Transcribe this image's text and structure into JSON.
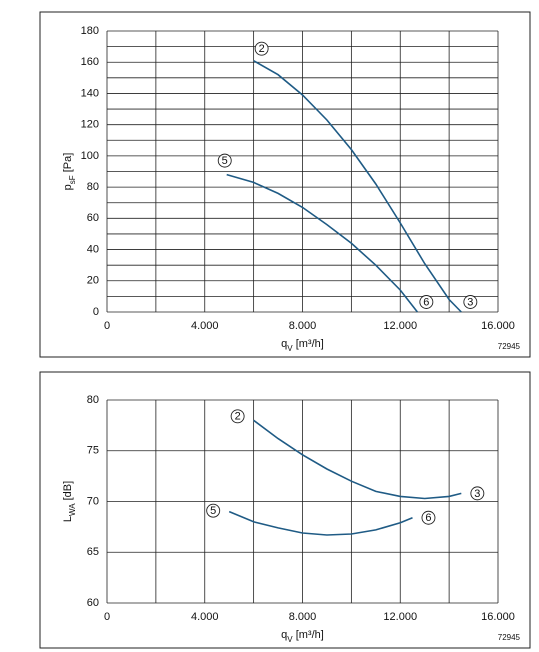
{
  "chart_data": [
    {
      "type": "line",
      "xlabel": {
        "main": "q",
        "sub": "V",
        "unit": " [m³/h]"
      },
      "ylabel": {
        "main": "p",
        "sub": "sF",
        "unit": " [Pa]"
      },
      "annotation": "72945",
      "xlim": [
        0,
        16000
      ],
      "xticks": [
        0,
        {
          "value": 4000,
          "label": "4.000"
        },
        {
          "value": 8000,
          "label": "8.000"
        },
        {
          "value": 12000,
          "label": "12.000"
        },
        {
          "value": 16000,
          "label": "16.000"
        }
      ],
      "xminor": [
        2000,
        6000,
        10000,
        14000
      ],
      "ylim": [
        0,
        180
      ],
      "yticks": [
        0,
        20,
        40,
        60,
        80,
        100,
        120,
        140,
        160,
        180
      ],
      "yminor": [
        10,
        30,
        50,
        70,
        90,
        110,
        130,
        150,
        170
      ],
      "grid": true,
      "series": [
        {
          "start_label": "2",
          "end_label": "3",
          "color": "#1f5b85",
          "x": [
            6000,
            7000,
            8000,
            9000,
            10000,
            11000,
            12000,
            13000,
            14000,
            14500
          ],
          "values": [
            161,
            152,
            139,
            123,
            104,
            82,
            57,
            31,
            8,
            0
          ]
        },
        {
          "start_label": "5",
          "end_label": "6",
          "color": "#1f5b85",
          "x": [
            4900,
            6000,
            7000,
            8000,
            9000,
            10000,
            11000,
            12000,
            12700
          ],
          "values": [
            88,
            83,
            76,
            67,
            56,
            44,
            30,
            14,
            0
          ]
        }
      ]
    },
    {
      "type": "line",
      "xlabel": {
        "main": "q",
        "sub": "V",
        "unit": " [m³/h]"
      },
      "ylabel": {
        "main": "L",
        "sub": "WA",
        "unit": " [dB]"
      },
      "annotation": "72945",
      "xlim": [
        0,
        16000
      ],
      "xticks": [
        0,
        {
          "value": 4000,
          "label": "4.000"
        },
        {
          "value": 8000,
          "label": "8.000"
        },
        {
          "value": 12000,
          "label": "12.000"
        },
        {
          "value": 16000,
          "label": "16.000"
        }
      ],
      "xminor": [
        2000,
        6000,
        10000,
        14000
      ],
      "ylim": [
        60,
        80
      ],
      "yticks": [
        60,
        65,
        70,
        75,
        80
      ],
      "yminor": [],
      "grid": true,
      "series": [
        {
          "start_label": "2",
          "end_label": "3",
          "color": "#1f5b85",
          "x": [
            6000,
            7000,
            8000,
            9000,
            10000,
            11000,
            12000,
            13000,
            14000,
            14500
          ],
          "values": [
            78,
            76.2,
            74.6,
            73.2,
            72,
            71,
            70.5,
            70.3,
            70.5,
            70.8
          ]
        },
        {
          "start_label": "5",
          "end_label": "6",
          "color": "#1f5b85",
          "x": [
            5000,
            6000,
            7000,
            8000,
            9000,
            10000,
            11000,
            12000,
            12500
          ],
          "values": [
            69,
            68,
            67.4,
            66.9,
            66.7,
            66.8,
            67.2,
            67.9,
            68.4
          ]
        }
      ]
    }
  ]
}
